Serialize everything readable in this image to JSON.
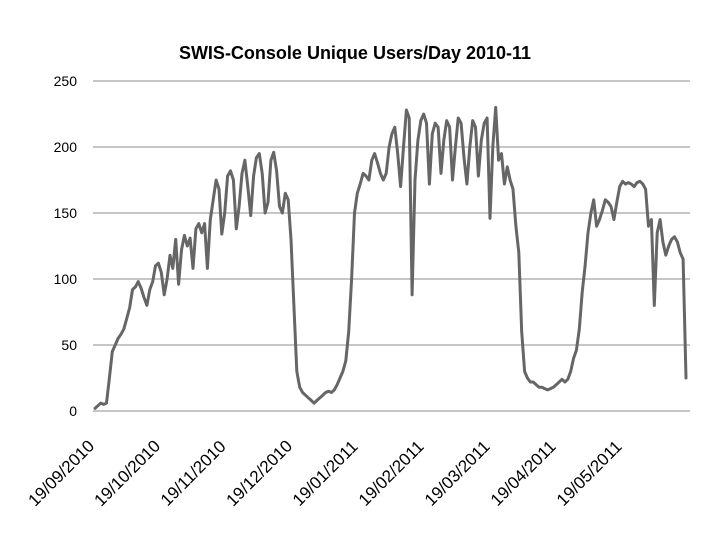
{
  "chart_data": {
    "type": "line",
    "title": "SWIS-Console Unique Users/Day 2010-11",
    "xlabel": "",
    "ylabel": "",
    "ylim": [
      0,
      250
    ],
    "yticks": [
      "0",
      "50",
      "100",
      "150",
      "200",
      "250"
    ],
    "grid": true,
    "legend": "none",
    "color": "#666666",
    "x_tick_labels": [
      "19/09/2010",
      "19/10/2010",
      "19/11/2010",
      "19/12/2010",
      "19/01/2011",
      "19/02/2011",
      "19/03/2011",
      "19/04/2011",
      "19/05/2011"
    ],
    "days_total": 270,
    "series": [
      {
        "name": "Unique Users/Day",
        "start_date": "19/09/2010",
        "values": [
          2,
          4,
          6,
          5,
          6,
          25,
          45,
          50,
          55,
          58,
          62,
          70,
          78,
          92,
          94,
          98,
          93,
          86,
          80,
          92,
          98,
          110,
          112,
          105,
          88,
          100,
          118,
          108,
          130,
          96,
          122,
          133,
          125,
          131,
          108,
          138,
          142,
          135,
          142,
          108,
          145,
          160,
          175,
          168,
          134,
          150,
          178,
          182,
          175,
          138,
          155,
          180,
          190,
          170,
          148,
          178,
          192,
          195,
          180,
          150,
          158,
          190,
          196,
          182,
          155,
          150,
          165,
          160,
          130,
          80,
          30,
          18,
          14,
          12,
          10,
          8,
          6,
          8,
          10,
          12,
          14,
          15,
          14,
          16,
          20,
          25,
          30,
          38,
          60,
          100,
          150,
          165,
          172,
          180,
          178,
          175,
          190,
          195,
          188,
          180,
          175,
          180,
          200,
          210,
          215,
          195,
          170,
          200,
          228,
          222,
          88,
          175,
          205,
          220,
          225,
          218,
          172,
          210,
          218,
          215,
          180,
          205,
          220,
          215,
          175,
          200,
          222,
          218,
          192,
          172,
          200,
          220,
          215,
          178,
          205,
          218,
          222,
          146,
          200,
          230,
          190,
          195,
          172,
          185,
          175,
          168,
          140,
          120,
          60,
          30,
          25,
          22,
          22,
          20,
          18,
          18,
          17,
          16,
          17,
          18,
          20,
          22,
          24,
          22,
          24,
          30,
          40,
          46,
          62,
          90,
          110,
          135,
          150,
          160,
          140,
          145,
          152,
          160,
          158,
          155,
          145,
          158,
          170,
          174,
          172,
          173,
          172,
          170,
          173,
          174,
          172,
          168,
          140,
          145,
          80,
          135,
          145,
          128,
          118,
          125,
          130,
          132,
          128,
          120,
          115,
          25
        ]
      }
    ]
  }
}
